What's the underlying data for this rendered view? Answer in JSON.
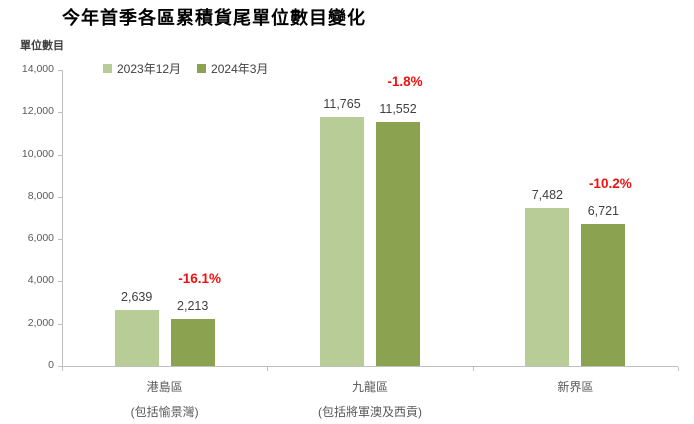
{
  "title": "今年首季各區累積貨尾單位數目變化",
  "colors": {
    "series_light_green": "#b7cc97",
    "series_dark_green": "#8ba250",
    "axis_gray": "#bfbfbf",
    "tick_label_gray": "#595959",
    "value_label_gray": "#3f3f3f",
    "change_red": "#ee1111",
    "background": "#ffffff"
  },
  "chart_data": {
    "type": "bar",
    "title": "今年首季各區累積貨尾單位數目變化",
    "xlabel": "",
    "ylabel": "單位數目",
    "ylim": [
      0,
      14000
    ],
    "ytick_step": 2000,
    "ytick_labels": [
      "0",
      "2,000",
      "4,000",
      "6,000",
      "8,000",
      "10,000",
      "12,000",
      "14,000"
    ],
    "grid": false,
    "legend_position": "top-left-inside",
    "categories": [
      {
        "name": "港島區",
        "subtitle": "(包括愉景灣)"
      },
      {
        "name": "九龍區",
        "subtitle": "(包括將軍澳及西貢)"
      },
      {
        "name": "新界區",
        "subtitle": ""
      }
    ],
    "series": [
      {
        "name": "2023年12月",
        "color": "#b7cc97",
        "values": [
          2639,
          11765,
          7482
        ]
      },
      {
        "name": "2024年3月",
        "color": "#8ba250",
        "values": [
          2213,
          11552,
          6721
        ]
      }
    ],
    "value_labels": [
      [
        "2,639",
        "2,213"
      ],
      [
        "11,765",
        "11,552"
      ],
      [
        "7,482",
        "6,721"
      ]
    ],
    "change_labels": [
      "-16.1%",
      "-1.8%",
      "-10.2%"
    ]
  }
}
